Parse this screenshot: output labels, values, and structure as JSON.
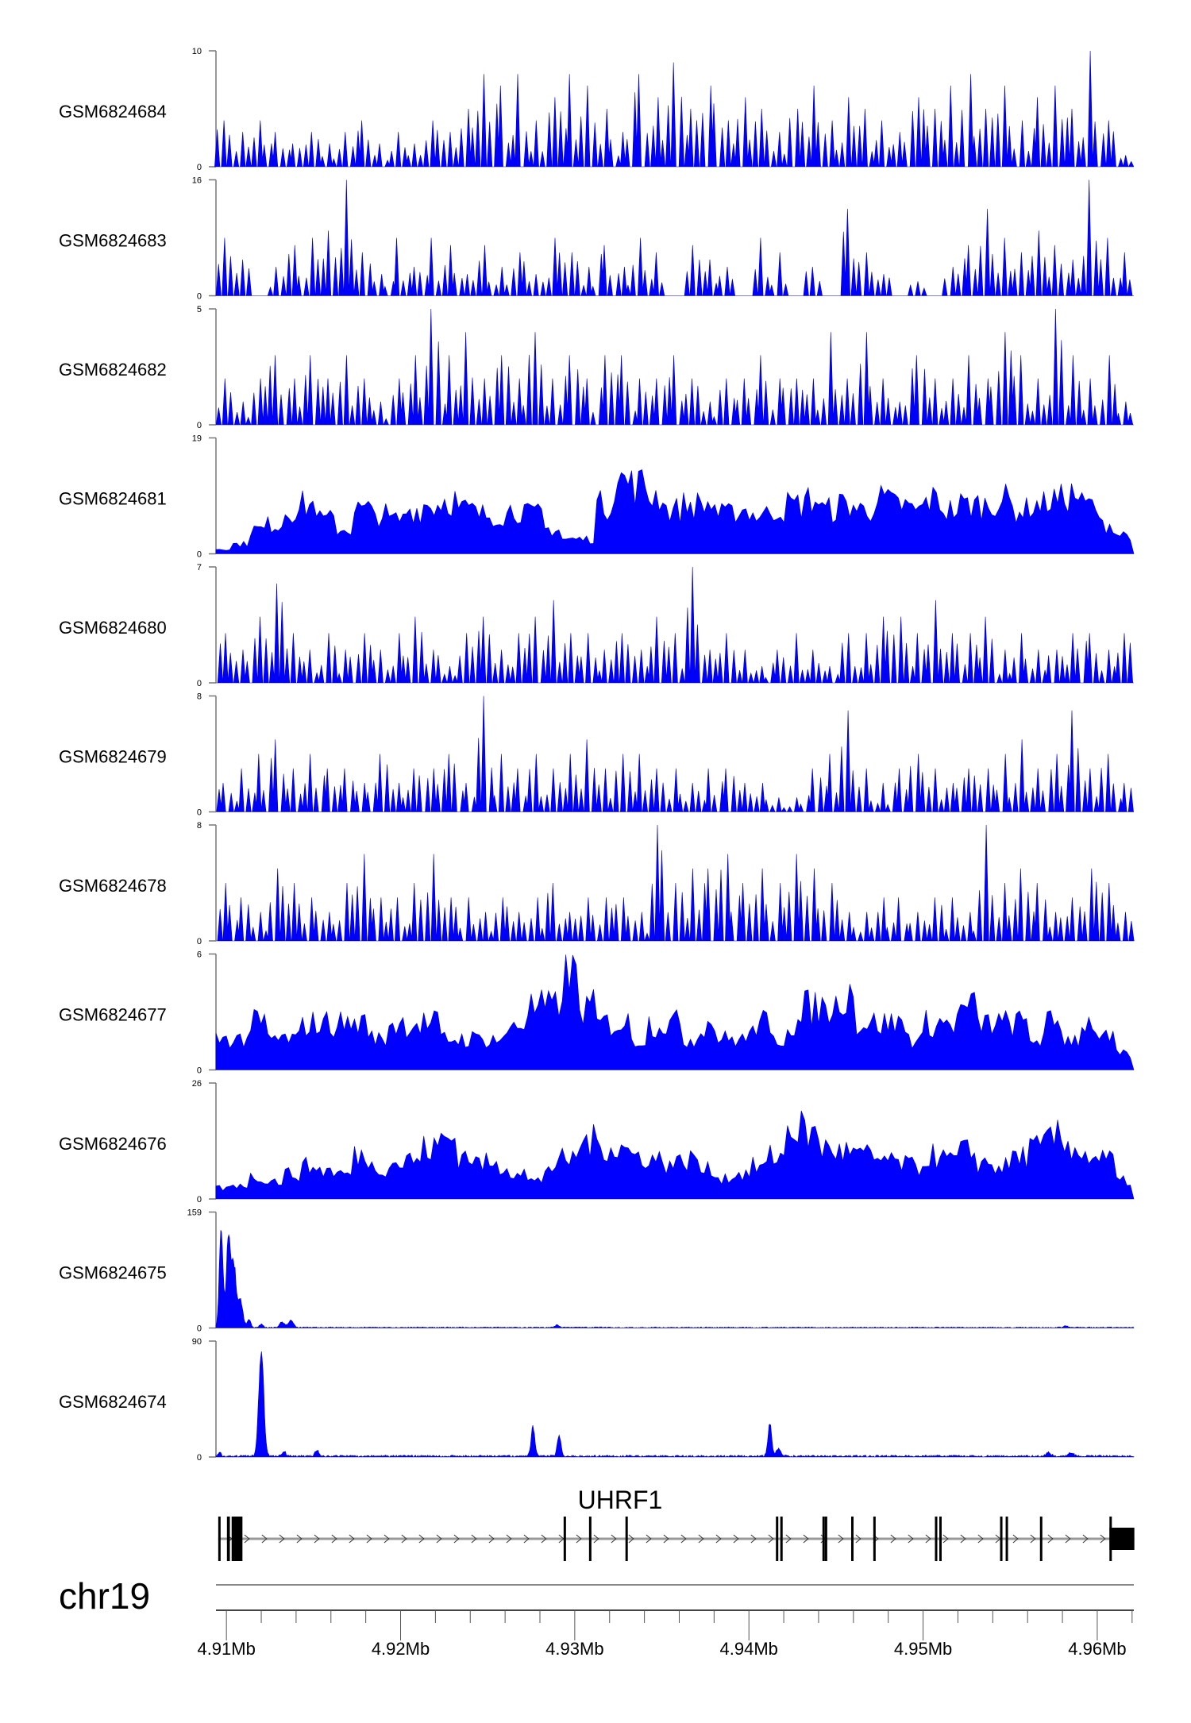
{
  "chart_data": {
    "type": "area",
    "chromosome": "chr19",
    "x_unit": "Mb",
    "xlim": [
      4.9094,
      4.9621
    ],
    "x_ticks_major": [
      "4.91Mb",
      "4.92Mb",
      "4.93Mb",
      "4.94Mb",
      "4.95Mb",
      "4.96Mb"
    ],
    "x_ticks_major_values": [
      4.91,
      4.92,
      4.93,
      4.94,
      4.95,
      4.96
    ],
    "x_tick_minor_step": 0.002,
    "fill_color": "#0000ff",
    "tracks": [
      {
        "name": "GSM6824684",
        "ymax": 10,
        "ymax_label": "10",
        "ymin_label": "0",
        "style": "spiky",
        "values": [
          4,
          3,
          4,
          3,
          2,
          3,
          2,
          3,
          4,
          2,
          3,
          2,
          4,
          3,
          5,
          8,
          7,
          8,
          4,
          6,
          8,
          7,
          5,
          3,
          8,
          6,
          9,
          5,
          7,
          4,
          6,
          5,
          3,
          5,
          7,
          4,
          6,
          5,
          4,
          3,
          6,
          5,
          7,
          8,
          5,
          7,
          4,
          6,
          7,
          5,
          10,
          4,
          1
        ]
      },
      {
        "name": "GSM6824683",
        "ymax": 16,
        "ymax_label": "16",
        "ymin_label": "0",
        "style": "spiky",
        "values": [
          8,
          5,
          0,
          4,
          7,
          8,
          9,
          16,
          6,
          3,
          8,
          4,
          8,
          7,
          3,
          7,
          4,
          6,
          3,
          8,
          6,
          4,
          7,
          4,
          8,
          6,
          0,
          7,
          5,
          4,
          0,
          8,
          6,
          0,
          4,
          0,
          12,
          6,
          3,
          0,
          2,
          0,
          4,
          7,
          12,
          8,
          6,
          9,
          7,
          5,
          16,
          8,
          6
        ]
      },
      {
        "name": "GSM6824682",
        "ymax": 5,
        "ymax_label": "5",
        "ymin_label": "0",
        "style": "spiky",
        "values": [
          2,
          1,
          2,
          3,
          2,
          3,
          2,
          3,
          2,
          1,
          2,
          3,
          5,
          3,
          4,
          2,
          3,
          2,
          4,
          2,
          3,
          2,
          3,
          3,
          2,
          2,
          3,
          2,
          1,
          2,
          2,
          3,
          2,
          2,
          2,
          4,
          2,
          4,
          2,
          1,
          3,
          2,
          2,
          3,
          2,
          4,
          3,
          2,
          5,
          3,
          2,
          3,
          1
        ]
      },
      {
        "name": "GSM6824681",
        "ymax": 19,
        "ymax_label": "19",
        "ymin_label": "0",
        "style": "dense",
        "values": [
          1,
          2,
          5,
          6,
          9,
          10,
          7,
          5,
          9,
          8,
          7,
          9,
          10,
          11,
          9,
          8,
          8,
          9,
          8,
          5,
          3,
          3,
          10,
          15,
          14,
          12,
          9,
          10,
          10,
          8,
          9,
          8,
          9,
          10,
          11,
          9,
          10,
          9,
          11,
          10,
          9,
          11,
          9,
          10,
          10,
          11,
          9,
          10,
          11,
          12,
          10,
          6,
          4
        ]
      },
      {
        "name": "GSM6824680",
        "ymax": 7,
        "ymax_label": "7",
        "ymin_label": "0",
        "style": "spiky",
        "values": [
          3,
          2,
          4,
          6,
          3,
          2,
          3,
          2,
          3,
          2,
          3,
          4,
          2,
          1,
          3,
          4,
          2,
          3,
          4,
          5,
          3,
          3,
          2,
          3,
          2,
          4,
          3,
          7,
          2,
          3,
          2,
          1,
          2,
          3,
          2,
          1,
          3,
          3,
          4,
          4,
          3,
          5,
          3,
          3,
          4,
          2,
          3,
          2,
          2,
          3,
          3,
          2,
          3
        ]
      },
      {
        "name": "GSM6824679",
        "ymax": 8,
        "ymax_label": "8",
        "ymin_label": "0",
        "style": "spiky",
        "values": [
          2,
          3,
          4,
          5,
          3,
          4,
          3,
          3,
          2,
          4,
          2,
          3,
          3,
          4,
          2,
          8,
          4,
          3,
          4,
          3,
          4,
          5,
          3,
          4,
          4,
          3,
          3,
          2,
          3,
          3,
          2,
          2,
          1,
          1,
          3,
          4,
          7,
          3,
          2,
          3,
          4,
          3,
          2,
          3,
          3,
          4,
          5,
          3,
          4,
          7,
          3,
          4,
          2
        ]
      },
      {
        "name": "GSM6824678",
        "ymax": 8,
        "ymax_label": "8",
        "ymin_label": "0",
        "style": "spiky",
        "values": [
          4,
          3,
          2,
          5,
          4,
          3,
          2,
          4,
          6,
          3,
          3,
          4,
          6,
          3,
          3,
          2,
          3,
          2,
          3,
          4,
          2,
          3,
          3,
          3,
          2,
          8,
          4,
          5,
          5,
          6,
          4,
          5,
          4,
          6,
          5,
          4,
          2,
          2,
          3,
          3,
          2,
          3,
          3,
          2,
          8,
          4,
          5,
          4,
          2,
          3,
          5,
          4,
          2
        ]
      },
      {
        "name": "GSM6824677",
        "ymax": 6,
        "ymax_label": "6",
        "ymin_label": "0",
        "style": "dense",
        "values": [
          2,
          2,
          3,
          2,
          2,
          3,
          3,
          3,
          3,
          2,
          3,
          3,
          3,
          2,
          2,
          2,
          2,
          3,
          4,
          4,
          6,
          4,
          3,
          3,
          2,
          3,
          3,
          2,
          3,
          2,
          2,
          3,
          2,
          3,
          4,
          4,
          5,
          3,
          3,
          3,
          2,
          3,
          3,
          4,
          3,
          3,
          3,
          2,
          3,
          2,
          3,
          2,
          1
        ]
      },
      {
        "name": "GSM6824676",
        "ymax": 26,
        "ymax_label": "26",
        "ymin_label": "0",
        "style": "dense",
        "values": [
          3,
          4,
          6,
          5,
          7,
          9,
          8,
          7,
          12,
          9,
          10,
          11,
          14,
          17,
          12,
          10,
          9,
          8,
          5,
          9,
          11,
          16,
          15,
          14,
          12,
          11,
          10,
          11,
          8,
          6,
          7,
          9,
          12,
          20,
          18,
          14,
          13,
          12,
          11,
          10,
          9,
          12,
          11,
          13,
          10,
          9,
          12,
          14,
          17,
          15,
          12,
          11,
          5
        ]
      },
      {
        "name": "GSM6824675",
        "ymax": 159,
        "ymax_label": "159",
        "ymin_label": "0",
        "style": "peaks",
        "peaks": [
          [
            4.9097,
            150,
            0.0003
          ],
          [
            4.9101,
            135,
            0.0003
          ],
          [
            4.9104,
            100,
            0.0004
          ],
          [
            4.9108,
            40,
            0.0004
          ],
          [
            4.9113,
            12,
            0.0003
          ],
          [
            4.912,
            5,
            0.0003
          ],
          [
            4.9132,
            8,
            0.0004
          ],
          [
            4.9137,
            10,
            0.0004
          ],
          [
            4.929,
            4,
            0.0003
          ],
          [
            4.9582,
            2,
            0.0003
          ]
        ],
        "background": 1.5
      },
      {
        "name": "GSM6824674",
        "ymax": 90,
        "ymax_label": "90",
        "ymin_label": "0",
        "style": "peaks",
        "peaks": [
          [
            4.9096,
            4,
            0.0002
          ],
          [
            4.912,
            90,
            0.0004
          ],
          [
            4.9133,
            4,
            0.0003
          ],
          [
            4.9152,
            5,
            0.0003
          ],
          [
            4.9276,
            24,
            0.0003
          ],
          [
            4.9291,
            17,
            0.0003
          ],
          [
            4.9412,
            27,
            0.0003
          ],
          [
            4.9417,
            6,
            0.0004
          ],
          [
            4.9572,
            3,
            0.0004
          ],
          [
            4.9585,
            3,
            0.0004
          ]
        ],
        "background": 1.5
      }
    ]
  },
  "gene": {
    "name": "UHRF1",
    "start": 4.90953,
    "end": 4.96213,
    "strand": "+",
    "exons": [
      [
        4.90953,
        4.9096
      ],
      [
        4.91003,
        4.9102
      ],
      [
        4.9103,
        4.91092
      ],
      [
        4.92936,
        4.92946
      ],
      [
        4.93082,
        4.9309
      ],
      [
        4.93291,
        4.933
      ],
      [
        4.94155,
        4.94162
      ],
      [
        4.9418,
        4.94188
      ],
      [
        4.94422,
        4.94428
      ],
      [
        4.94436,
        4.94442
      ],
      [
        4.94587,
        4.94593
      ],
      [
        4.94714,
        4.9472
      ],
      [
        4.95068,
        4.95075
      ],
      [
        4.95093,
        4.951
      ],
      [
        4.95442,
        4.95449
      ],
      [
        4.95474,
        4.9548
      ],
      [
        4.95671,
        4.95677
      ],
      [
        4.9607,
        4.96213
      ]
    ],
    "utr_exons": [
      [
        4.96075,
        4.96213
      ]
    ]
  }
}
